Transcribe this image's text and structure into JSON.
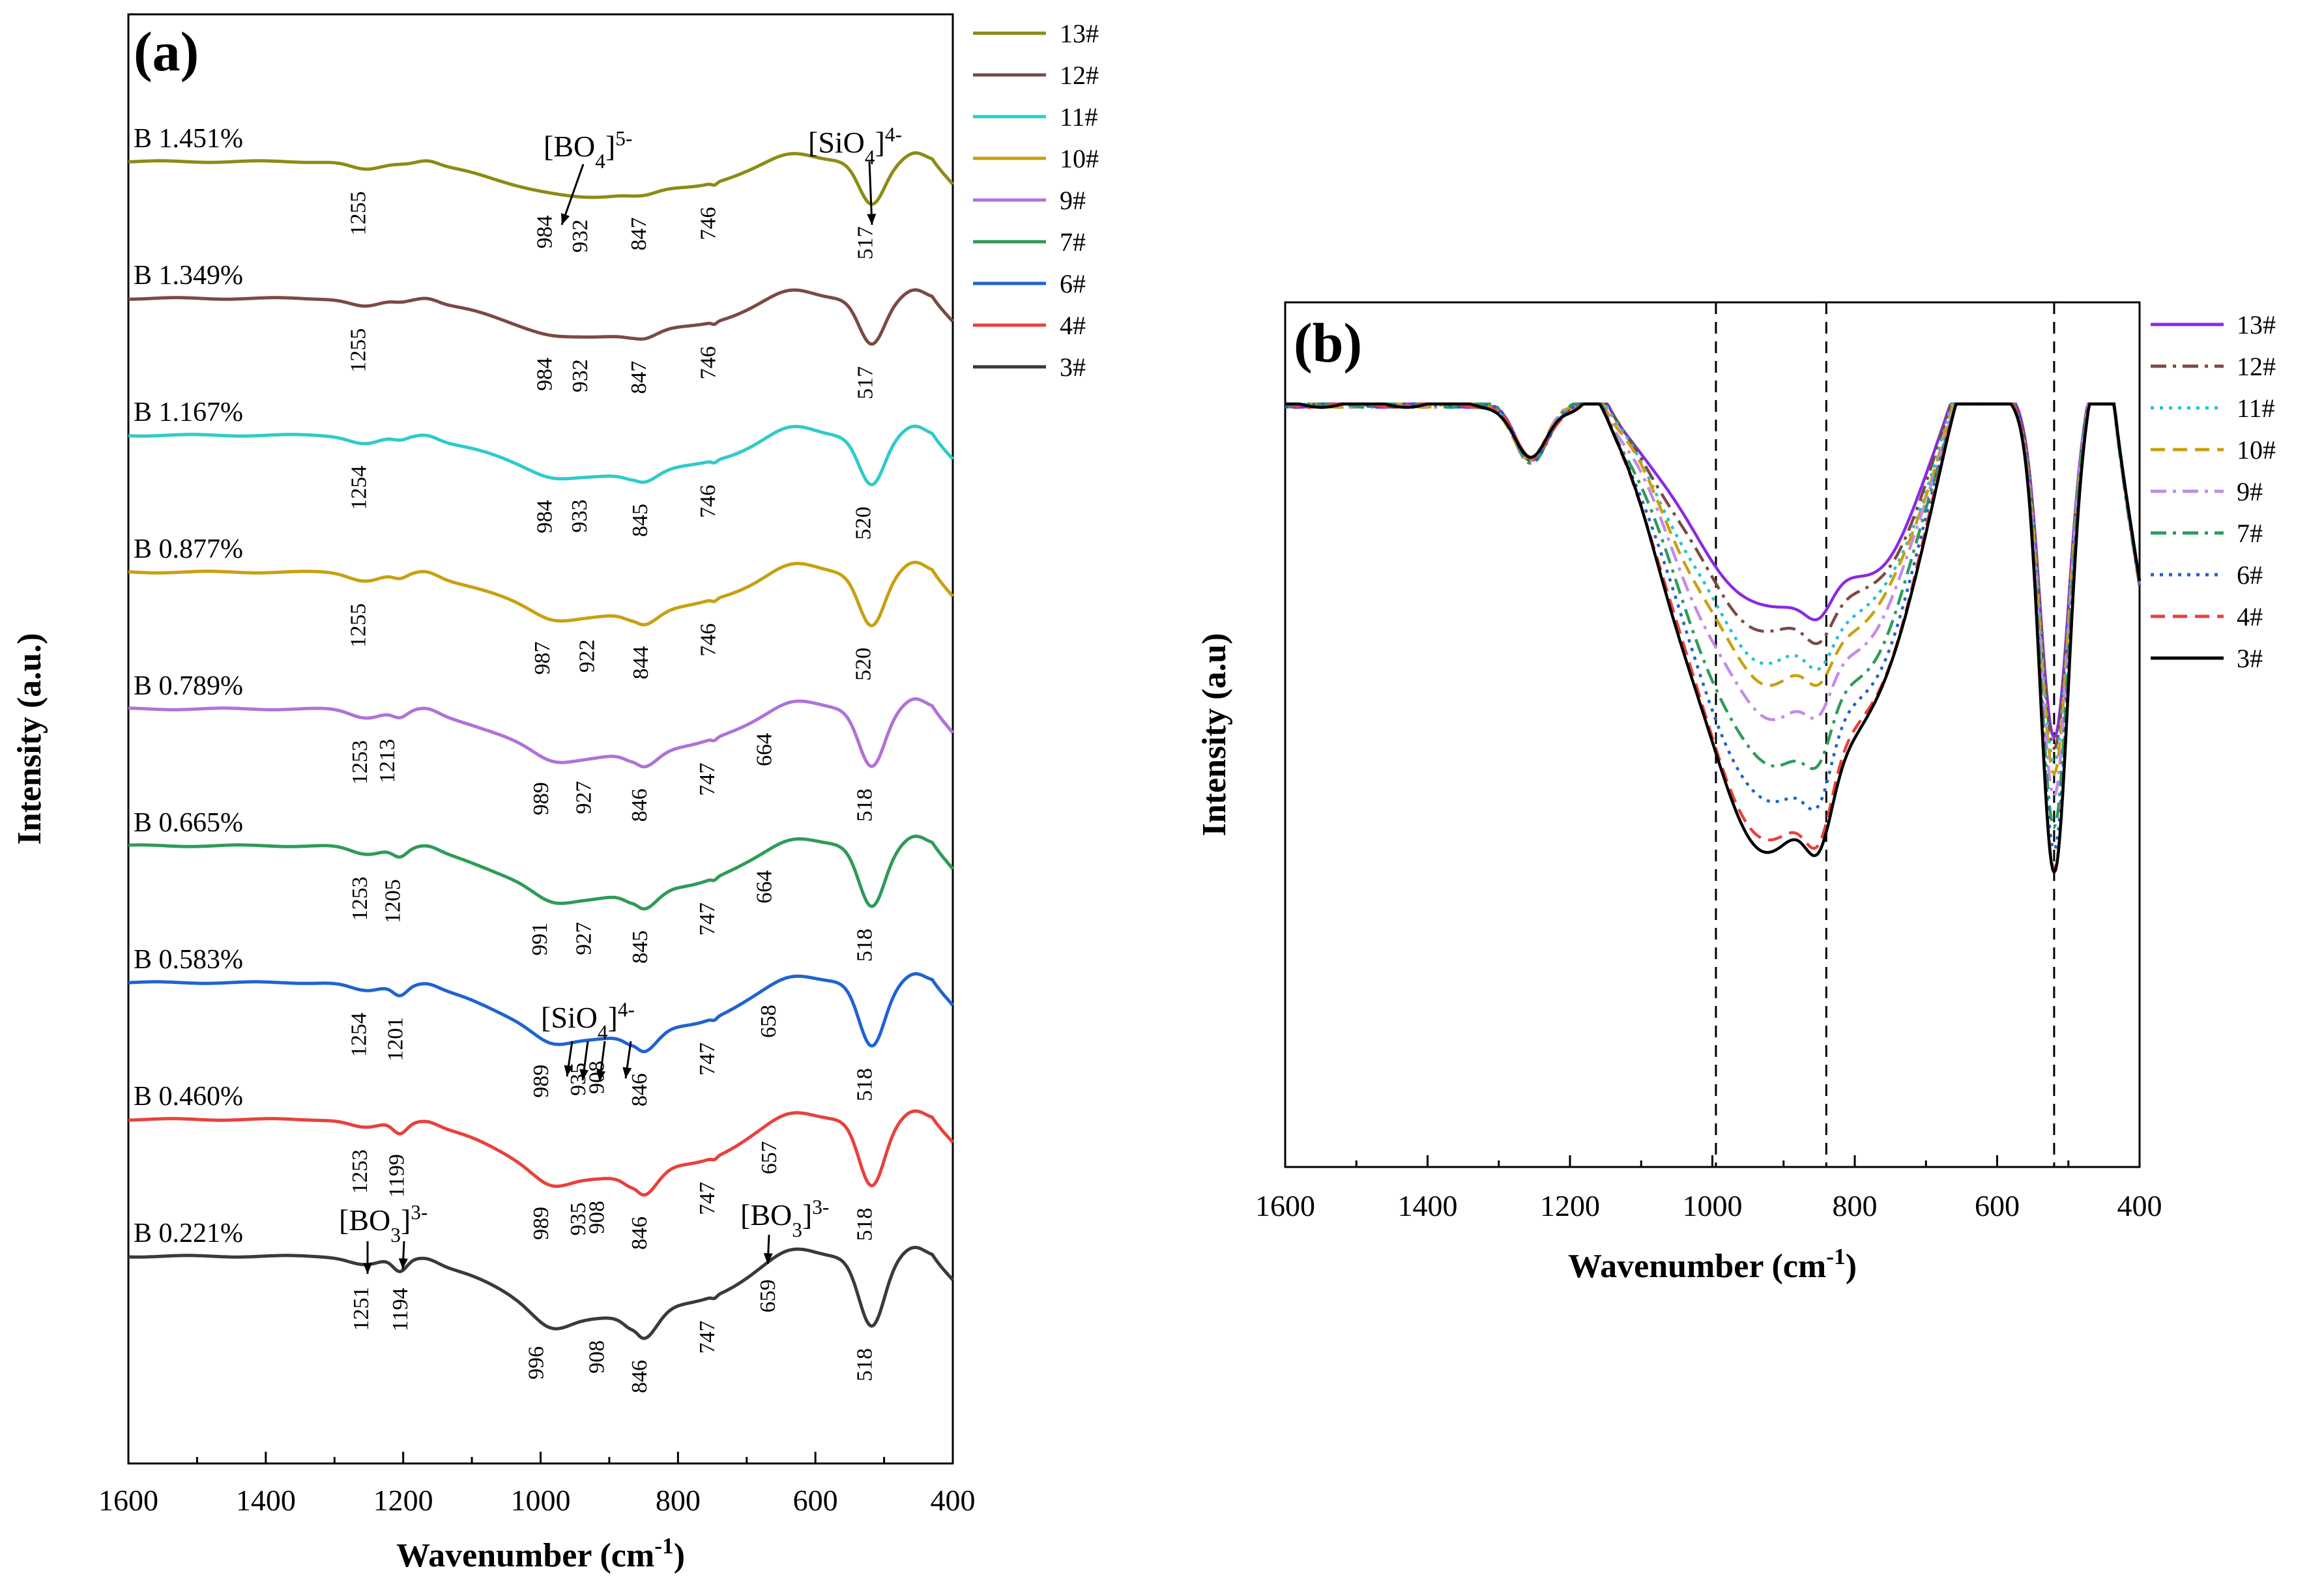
{
  "chart_data": [
    {
      "type": "line",
      "panel": "(a)",
      "xlabel": "Wavenumber (cm",
      "xlabel_sup": "-1",
      "xlabel_end": ")",
      "ylabel": "Intensity (a.u.)",
      "xlim": [
        1600,
        400
      ],
      "xticks": [
        "1600",
        "1400",
        "1200",
        "1000",
        "800",
        "600",
        "400"
      ],
      "annotations": [
        {
          "base": "[BO",
          "sub": "4",
          "tail": "]",
          "sup": "5-",
          "position": "above 13# trough"
        },
        {
          "base": "[SiO",
          "sub": "4",
          "tail": "]",
          "sup": "4-",
          "position": "above 13# 517 band"
        },
        {
          "base": "[SiO",
          "sub": "4",
          "tail": "]",
          "sup": "4-",
          "position": "above 6# trough"
        },
        {
          "base": "[BO",
          "sub": "3",
          "tail": "]",
          "sup": "3-",
          "position": "above 3# 1251 band"
        },
        {
          "base": "[BO",
          "sub": "3",
          "tail": "]",
          "sup": "3-",
          "position": "above 3# 659 band"
        }
      ],
      "series": [
        {
          "name": "13#",
          "label": "B 1.451%",
          "color": "#8c8b15",
          "peaks": [
            {
              "x": 1255,
              "label": "1255"
            },
            {
              "x": 984,
              "label": "984"
            },
            {
              "x": 932,
              "label": "932"
            },
            {
              "x": 847,
              "label": "847"
            },
            {
              "x": 746,
              "label": "746"
            },
            {
              "x": 517,
              "label": "517"
            }
          ]
        },
        {
          "name": "12#",
          "label": "B 1.349%",
          "color": "#7b4a44",
          "peaks": [
            {
              "x": 1255,
              "label": "1255"
            },
            {
              "x": 984,
              "label": "984"
            },
            {
              "x": 932,
              "label": "932"
            },
            {
              "x": 847,
              "label": "847"
            },
            {
              "x": 746,
              "label": "746"
            },
            {
              "x": 517,
              "label": "517"
            }
          ]
        },
        {
          "name": "11#",
          "label": "B 1.167%",
          "color": "#2fcbc9",
          "peaks": [
            {
              "x": 1254,
              "label": "1254"
            },
            {
              "x": 984,
              "label": "984"
            },
            {
              "x": 933,
              "label": "933"
            },
            {
              "x": 845,
              "label": "845"
            },
            {
              "x": 746,
              "label": "746"
            },
            {
              "x": 520,
              "label": "520"
            }
          ]
        },
        {
          "name": "10#",
          "label": "B 0.877%",
          "color": "#c9a010",
          "peaks": [
            {
              "x": 1255,
              "label": "1255"
            },
            {
              "x": 987,
              "label": "987"
            },
            {
              "x": 922,
              "label": "922"
            },
            {
              "x": 844,
              "label": "844"
            },
            {
              "x": 746,
              "label": "746"
            },
            {
              "x": 520,
              "label": "520"
            }
          ]
        },
        {
          "name": "9#",
          "label": "B 0.789%",
          "color": "#b072d8",
          "peaks": [
            {
              "x": 1253,
              "label": "1253"
            },
            {
              "x": 1213,
              "label": "1213"
            },
            {
              "x": 989,
              "label": "989"
            },
            {
              "x": 927,
              "label": "927"
            },
            {
              "x": 846,
              "label": "846"
            },
            {
              "x": 747,
              "label": "747"
            },
            {
              "x": 664,
              "label": "664"
            },
            {
              "x": 518,
              "label": "518"
            }
          ]
        },
        {
          "name": "7#",
          "label": "B 0.665%",
          "color": "#2e9b59",
          "peaks": [
            {
              "x": 1253,
              "label": "1253"
            },
            {
              "x": 1205,
              "label": "1205"
            },
            {
              "x": 991,
              "label": "991"
            },
            {
              "x": 927,
              "label": "927"
            },
            {
              "x": 845,
              "label": "845"
            },
            {
              "x": 747,
              "label": "747"
            },
            {
              "x": 664,
              "label": "664"
            },
            {
              "x": 518,
              "label": "518"
            }
          ]
        },
        {
          "name": "6#",
          "label": "B 0.583%",
          "color": "#1f63d2",
          "peaks": [
            {
              "x": 1254,
              "label": "1254"
            },
            {
              "x": 1201,
              "label": "1201"
            },
            {
              "x": 989,
              "label": "989"
            },
            {
              "x": 935,
              "label": "935"
            },
            {
              "x": 908,
              "label": "908"
            },
            {
              "x": 846,
              "label": "846"
            },
            {
              "x": 747,
              "label": "747"
            },
            {
              "x": 658,
              "label": "658"
            },
            {
              "x": 518,
              "label": "518"
            }
          ]
        },
        {
          "name": "4#",
          "label": "B 0.460%",
          "color": "#e8413c",
          "peaks": [
            {
              "x": 1253,
              "label": "1253"
            },
            {
              "x": 1199,
              "label": "1199"
            },
            {
              "x": 989,
              "label": "989"
            },
            {
              "x": 935,
              "label": "935"
            },
            {
              "x": 908,
              "label": "908"
            },
            {
              "x": 846,
              "label": "846"
            },
            {
              "x": 747,
              "label": "747"
            },
            {
              "x": 657,
              "label": "657"
            },
            {
              "x": 518,
              "label": "518"
            }
          ]
        },
        {
          "name": "3#",
          "label": "B 0.221%",
          "color": "#3a3a3a",
          "peaks": [
            {
              "x": 1251,
              "label": "1251"
            },
            {
              "x": 1194,
              "label": "1194"
            },
            {
              "x": 996,
              "label": "996"
            },
            {
              "x": 908,
              "label": "908"
            },
            {
              "x": 846,
              "label": "846"
            },
            {
              "x": 747,
              "label": "747"
            },
            {
              "x": 659,
              "label": "659"
            },
            {
              "x": 518,
              "label": "518"
            }
          ]
        }
      ]
    },
    {
      "type": "line",
      "panel": "(b)",
      "xlabel": "Wavenumber (cm",
      "xlabel_sup": "-1",
      "xlabel_end": ")",
      "ylabel": "Intensity (a.u)",
      "xlim": [
        1600,
        400
      ],
      "xticks": [
        "1600",
        "1400",
        "1200",
        "1000",
        "800",
        "600",
        "400"
      ],
      "reference_lines": [
        995,
        840,
        520
      ],
      "series": [
        {
          "name": "13#",
          "color": "#8a2be2",
          "dash": "solid",
          "depth": 0.42
        },
        {
          "name": "12#",
          "color": "#7b4a44",
          "dash": "dashdot",
          "depth": 0.47
        },
        {
          "name": "11#",
          "color": "#22c3d3",
          "dash": "dot",
          "depth": 0.53
        },
        {
          "name": "10#",
          "color": "#c9a010",
          "dash": "dash",
          "depth": 0.57
        },
        {
          "name": "9#",
          "color": "#c48ae8",
          "dash": "dashdot",
          "depth": 0.64
        },
        {
          "name": "7#",
          "color": "#2e9b59",
          "dash": "dashdot",
          "depth": 0.74
        },
        {
          "name": "6#",
          "color": "#1f63d2",
          "dash": "dot",
          "depth": 0.82
        },
        {
          "name": "4#",
          "color": "#e8413c",
          "dash": "dash",
          "depth": 0.9
        },
        {
          "name": "3#",
          "color": "#000000",
          "dash": "solid",
          "depth": 0.92
        }
      ]
    }
  ]
}
